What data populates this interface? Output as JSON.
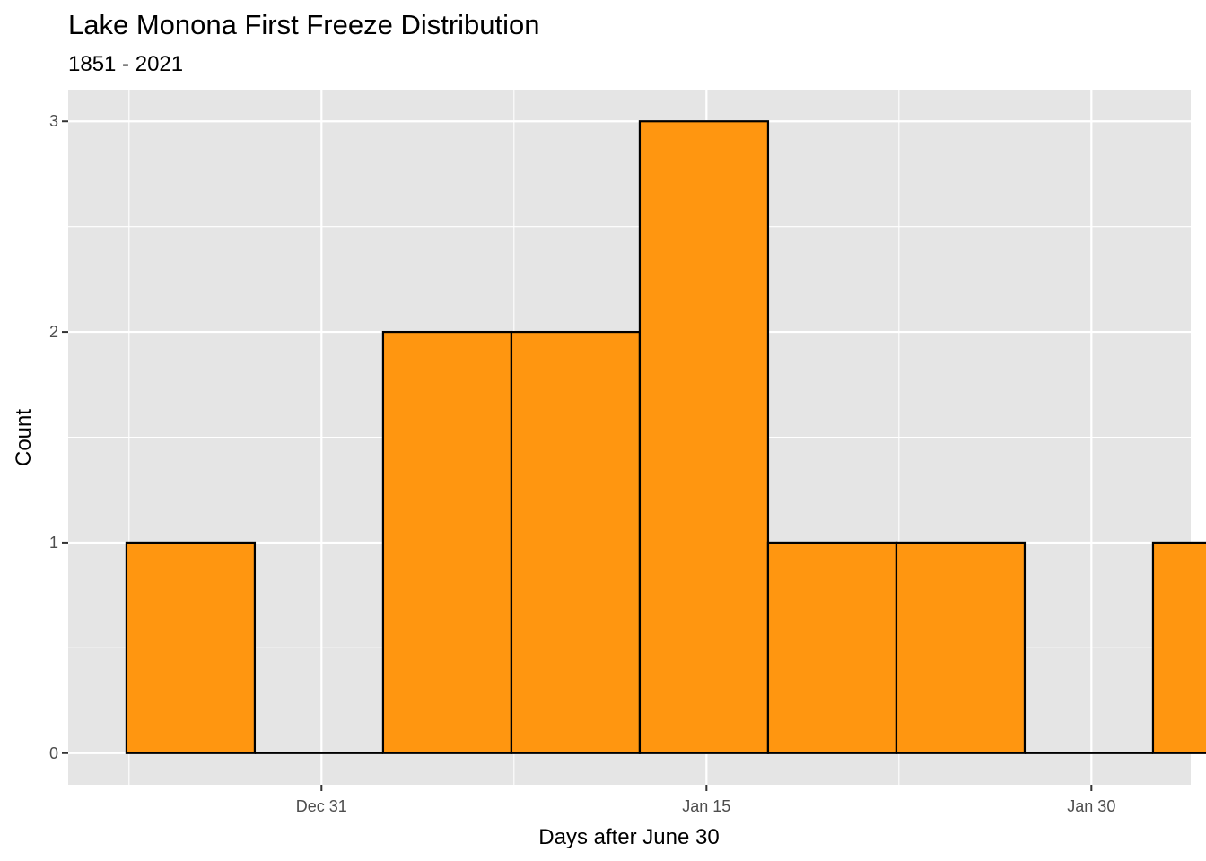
{
  "chart_data": {
    "type": "bar",
    "title": "Lake Monona First Freeze Distribution",
    "subtitle": "1851 - 2021",
    "xlabel": "Days after June 30",
    "ylabel": "Count",
    "x_ticks": [
      {
        "value": 184,
        "label": "Dec 31"
      },
      {
        "value": 199,
        "label": "Jan 15"
      },
      {
        "value": 214,
        "label": "Jan 30"
      }
    ],
    "y_ticks": [
      0,
      1,
      2,
      3
    ],
    "xlim": [
      174.13,
      217.87
    ],
    "ylim": [
      -0.15,
      3.15
    ],
    "bin_width": 5,
    "bins": [
      {
        "start": 176.4,
        "end": 181.4,
        "count": 1
      },
      {
        "start": 181.4,
        "end": 186.4,
        "count": 0
      },
      {
        "start": 186.4,
        "end": 191.4,
        "count": 2
      },
      {
        "start": 191.4,
        "end": 196.4,
        "count": 2
      },
      {
        "start": 196.4,
        "end": 201.4,
        "count": 3
      },
      {
        "start": 201.4,
        "end": 206.4,
        "count": 1
      },
      {
        "start": 206.4,
        "end": 211.4,
        "count": 1
      },
      {
        "start": 211.4,
        "end": 216.4,
        "count": 0
      },
      {
        "start": 216.4,
        "end": 221.4,
        "count": 1
      }
    ],
    "fill_color": "#ff9610",
    "outline_color": "#000000",
    "panel_background": "#e5e5e5",
    "grid": true,
    "legend": "none"
  }
}
